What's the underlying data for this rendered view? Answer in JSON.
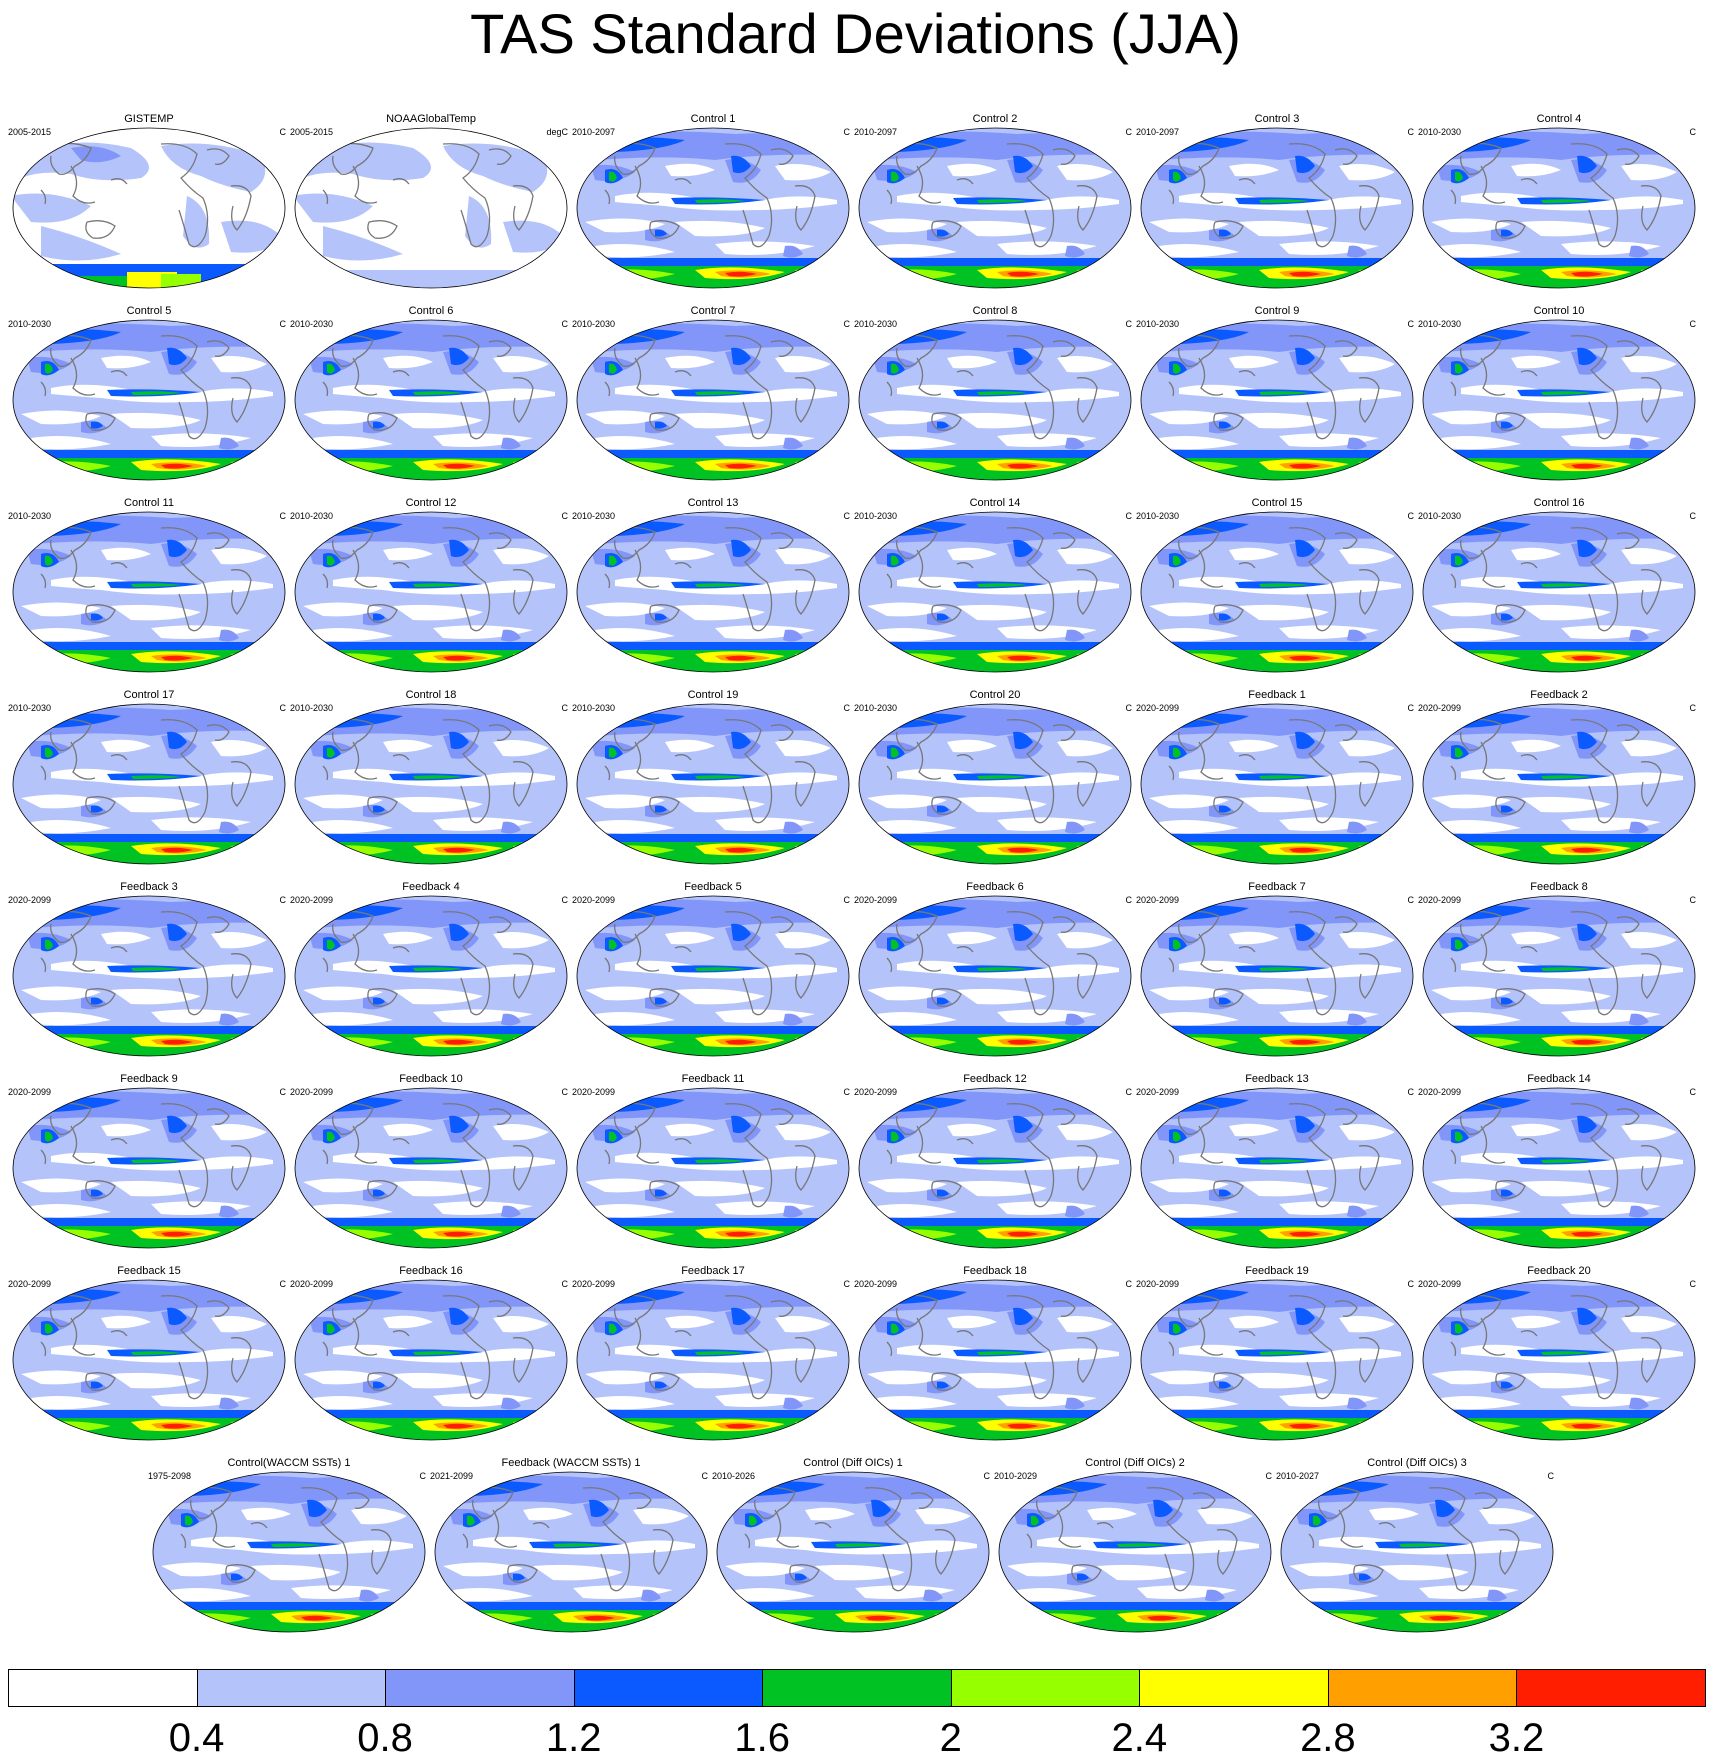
{
  "title": "TAS Standard Deviations (JJA)",
  "panels": [
    {
      "title": "GISTEMP",
      "period": "2005-2015",
      "units": "C",
      "kind": "obs"
    },
    {
      "title": "NOAAGlobalTemp",
      "period": "2005-2015",
      "units": "degC",
      "kind": "obs2"
    },
    {
      "title": "Control 1",
      "period": "2010-2097",
      "units": "C",
      "kind": "model"
    },
    {
      "title": "Control 2",
      "period": "2010-2097",
      "units": "C",
      "kind": "model"
    },
    {
      "title": "Control 3",
      "period": "2010-2097",
      "units": "C",
      "kind": "model"
    },
    {
      "title": "Control 4",
      "period": "2010-2030",
      "units": "C",
      "kind": "model"
    },
    {
      "title": "Control 5",
      "period": "2010-2030",
      "units": "C",
      "kind": "model"
    },
    {
      "title": "Control 6",
      "period": "2010-2030",
      "units": "C",
      "kind": "model"
    },
    {
      "title": "Control 7",
      "period": "2010-2030",
      "units": "C",
      "kind": "model"
    },
    {
      "title": "Control 8",
      "period": "2010-2030",
      "units": "C",
      "kind": "model"
    },
    {
      "title": "Control 9",
      "period": "2010-2030",
      "units": "C",
      "kind": "model"
    },
    {
      "title": "Control 10",
      "period": "2010-2030",
      "units": "C",
      "kind": "model"
    },
    {
      "title": "Control 11",
      "period": "2010-2030",
      "units": "C",
      "kind": "model"
    },
    {
      "title": "Control 12",
      "period": "2010-2030",
      "units": "C",
      "kind": "model"
    },
    {
      "title": "Control 13",
      "period": "2010-2030",
      "units": "C",
      "kind": "model"
    },
    {
      "title": "Control 14",
      "period": "2010-2030",
      "units": "C",
      "kind": "model"
    },
    {
      "title": "Control 15",
      "period": "2010-2030",
      "units": "C",
      "kind": "model"
    },
    {
      "title": "Control 16",
      "period": "2010-2030",
      "units": "C",
      "kind": "model"
    },
    {
      "title": "Control 17",
      "period": "2010-2030",
      "units": "C",
      "kind": "model"
    },
    {
      "title": "Control 18",
      "period": "2010-2030",
      "units": "C",
      "kind": "model"
    },
    {
      "title": "Control 19",
      "period": "2010-2030",
      "units": "C",
      "kind": "model"
    },
    {
      "title": "Control 20",
      "period": "2010-2030",
      "units": "C",
      "kind": "model"
    },
    {
      "title": "Feedback 1",
      "period": "2020-2099",
      "units": "C",
      "kind": "model"
    },
    {
      "title": "Feedback 2",
      "period": "2020-2099",
      "units": "C",
      "kind": "model"
    },
    {
      "title": "Feedback 3",
      "period": "2020-2099",
      "units": "C",
      "kind": "model"
    },
    {
      "title": "Feedback 4",
      "period": "2020-2099",
      "units": "C",
      "kind": "model"
    },
    {
      "title": "Feedback 5",
      "period": "2020-2099",
      "units": "C",
      "kind": "model"
    },
    {
      "title": "Feedback 6",
      "period": "2020-2099",
      "units": "C",
      "kind": "model"
    },
    {
      "title": "Feedback 7",
      "period": "2020-2099",
      "units": "C",
      "kind": "model"
    },
    {
      "title": "Feedback 8",
      "period": "2020-2099",
      "units": "C",
      "kind": "model"
    },
    {
      "title": "Feedback 9",
      "period": "2020-2099",
      "units": "C",
      "kind": "model"
    },
    {
      "title": "Feedback 10",
      "period": "2020-2099",
      "units": "C",
      "kind": "model"
    },
    {
      "title": "Feedback 11",
      "period": "2020-2099",
      "units": "C",
      "kind": "model"
    },
    {
      "title": "Feedback 12",
      "period": "2020-2099",
      "units": "C",
      "kind": "model"
    },
    {
      "title": "Feedback 13",
      "period": "2020-2099",
      "units": "C",
      "kind": "model"
    },
    {
      "title": "Feedback 14",
      "period": "2020-2099",
      "units": "C",
      "kind": "model"
    },
    {
      "title": "Feedback 15",
      "period": "2020-2099",
      "units": "C",
      "kind": "model"
    },
    {
      "title": "Feedback 16",
      "period": "2020-2099",
      "units": "C",
      "kind": "model"
    },
    {
      "title": "Feedback 17",
      "period": "2020-2099",
      "units": "C",
      "kind": "model"
    },
    {
      "title": "Feedback 18",
      "period": "2020-2099",
      "units": "C",
      "kind": "model"
    },
    {
      "title": "Feedback 19",
      "period": "2020-2099",
      "units": "C",
      "kind": "model"
    },
    {
      "title": "Feedback 20",
      "period": "2020-2099",
      "units": "C",
      "kind": "model"
    },
    {
      "title": "Control(WACCM SSTs) 1",
      "period": "1975-2098",
      "units": "C",
      "kind": "model"
    },
    {
      "title": "Feedback (WACCM SSTs) 1",
      "period": "2021-2099",
      "units": "C",
      "kind": "model"
    },
    {
      "title": "Control (Diff OICs) 1",
      "period": "2010-2026",
      "units": "C",
      "kind": "model"
    },
    {
      "title": "Control (Diff OICs) 2",
      "period": "2010-2029",
      "units": "C",
      "kind": "model"
    },
    {
      "title": "Control (Diff OICs) 3",
      "period": "2010-2027",
      "units": "C",
      "kind": "model"
    }
  ],
  "colorbar": {
    "colors": [
      "#ffffff",
      "#b4c3fa",
      "#8296fa",
      "#0a5aff",
      "#00c323",
      "#96ff00",
      "#ffff00",
      "#ffa000",
      "#ff1e00"
    ],
    "labels": [
      "0.4",
      "0.8",
      "1.2",
      "1.6",
      "2",
      "2.4",
      "2.8",
      "3.2"
    ]
  }
}
